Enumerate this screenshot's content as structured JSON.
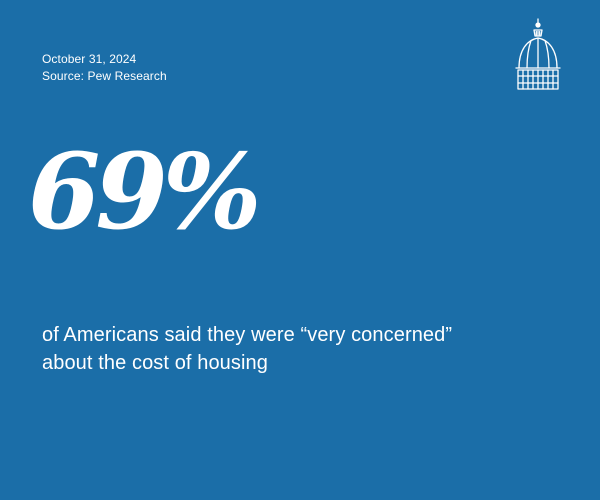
{
  "colors": {
    "background": "#1b6ea8",
    "foreground": "#ffffff"
  },
  "meta": {
    "date": "October 31, 2024",
    "source": "Source: Pew Research"
  },
  "logo": {
    "icon": "capitol-dome-icon"
  },
  "stat": {
    "value": "69%"
  },
  "caption": {
    "line1": "of Americans said they were “very concerned”",
    "line2": "about the cost of housing"
  }
}
